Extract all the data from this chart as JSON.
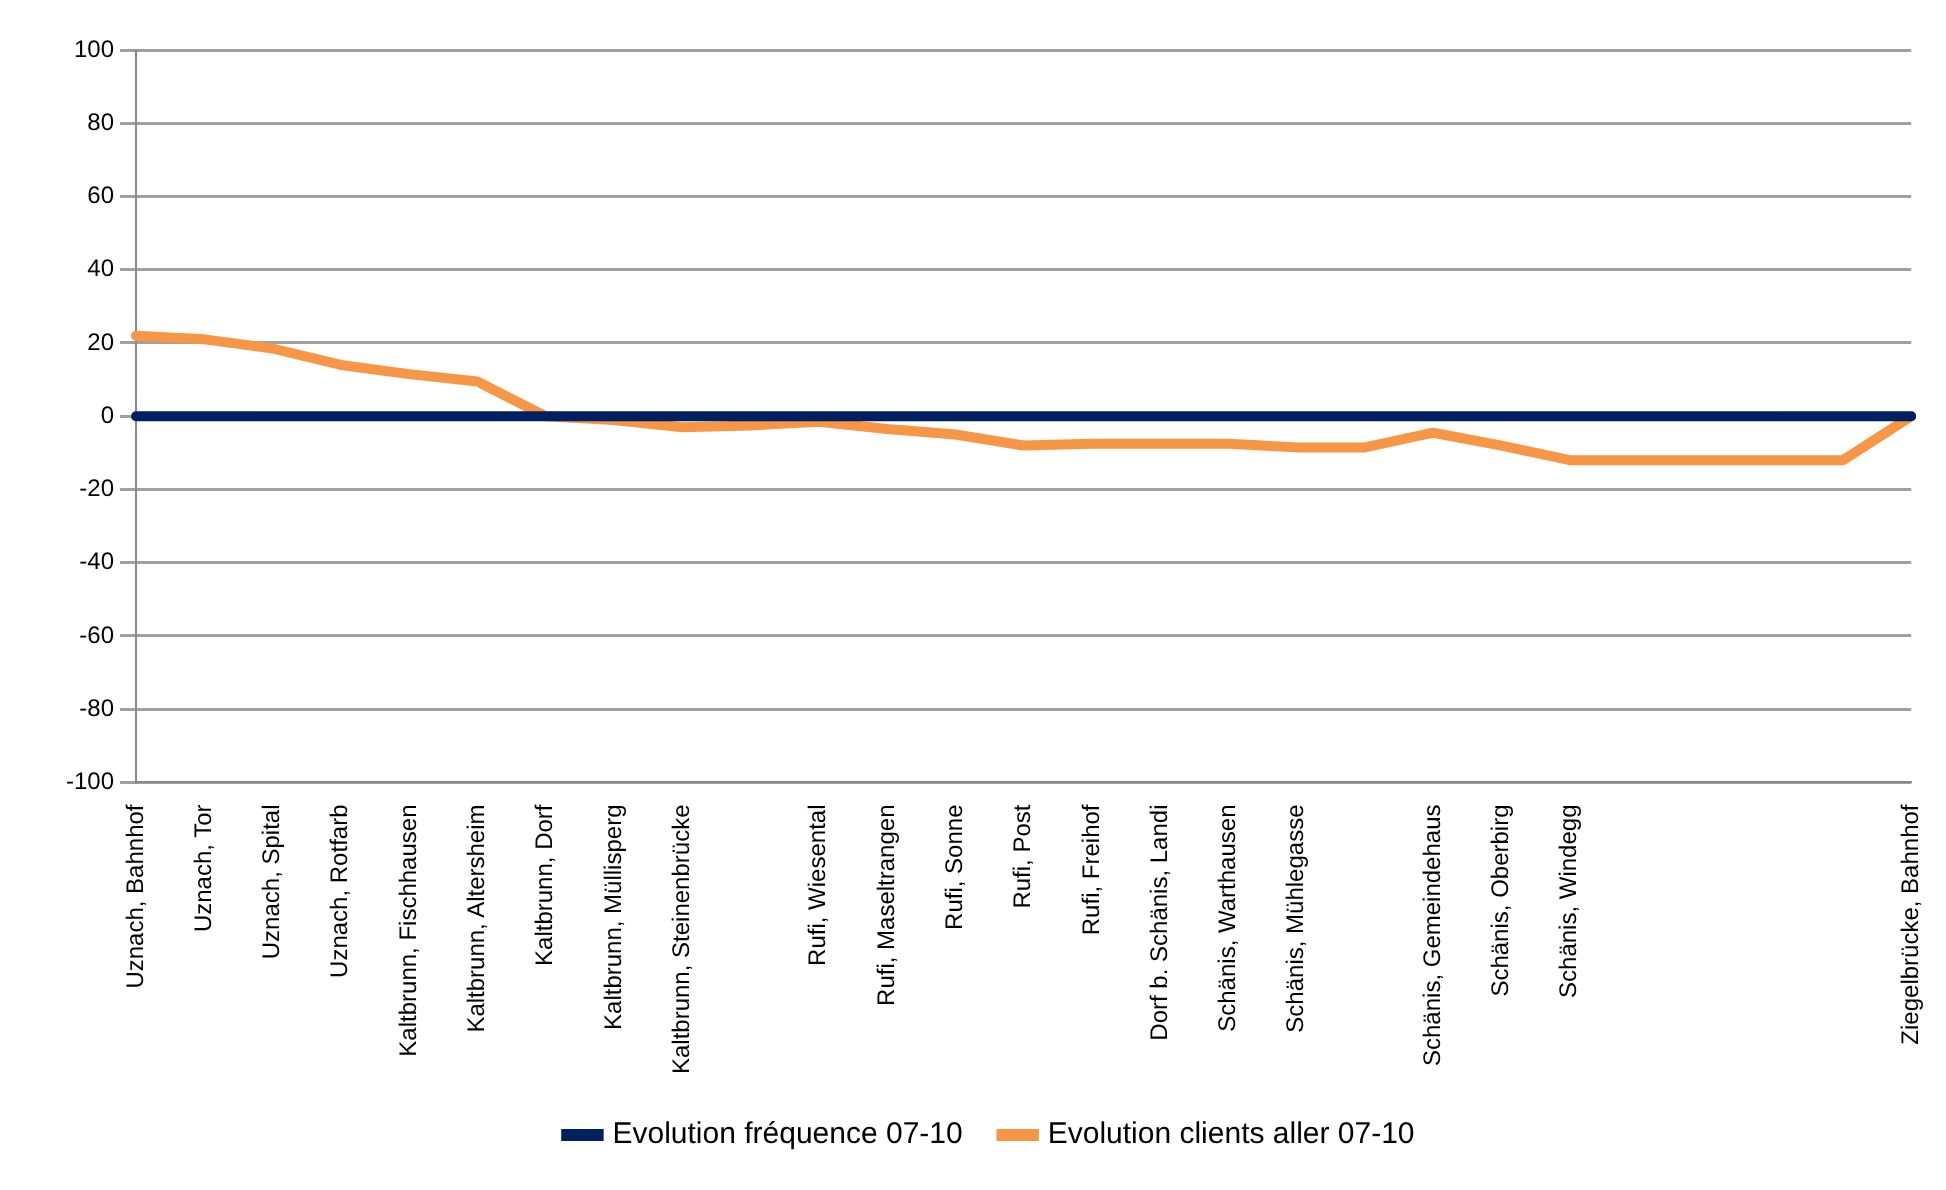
{
  "chart_data": {
    "type": "line",
    "categories": [
      "Uznach, Bahnhof",
      "Uznach, Tor",
      "Uznach, Spital",
      "Uznach, Rotfarb",
      "Kaltbrunn, Fischhausen",
      "Kaltbrunn, Altersheim",
      "Kaltbrunn, Dorf",
      "Kaltbrunn, Müllisperg",
      "Kaltbrunn, Steinenbrücke",
      null,
      "Rufi, Wiesental",
      "Rufi, Maseltrangen",
      "Rufi, Sonne",
      "Rufi, Post",
      "Rufi, Freihof",
      "Dorf b. Schänis, Landi",
      "Schänis, Warthausen",
      "Schänis, Mühlegasse",
      null,
      "Schänis, Gemeindehaus",
      "Schänis, Oberbirg",
      "Schänis, Windegg",
      null,
      null,
      null,
      null,
      "Ziegelbrücke, Bahnhof"
    ],
    "series": [
      {
        "name": "Evolution fréquence 07-10",
        "color": "#002060",
        "values": [
          0,
          0,
          0,
          0,
          0,
          0,
          0,
          0,
          0,
          0,
          0,
          0,
          0,
          0,
          0,
          0,
          0,
          0,
          0,
          0,
          0,
          0,
          0,
          0,
          0,
          0,
          0
        ]
      },
      {
        "name": "Evolution clients aller 07-10",
        "color": "#f79646",
        "values": [
          22,
          21,
          18.5,
          14,
          11.5,
          9.5,
          0,
          -1,
          -3,
          -2.5,
          -1.5,
          -3.5,
          -5,
          -8,
          -7.5,
          -7.5,
          -7.5,
          -8.5,
          -8.5,
          -4.5,
          -8,
          -12,
          -12,
          -12,
          -12,
          -12,
          0
        ]
      }
    ],
    "ylim": [
      -100,
      100
    ],
    "yticks": [
      -100,
      -80,
      -60,
      -40,
      -20,
      0,
      20,
      40,
      60,
      80,
      100
    ],
    "grid": "y",
    "legend": "bottom",
    "marker": "none",
    "line_style": "solid"
  }
}
